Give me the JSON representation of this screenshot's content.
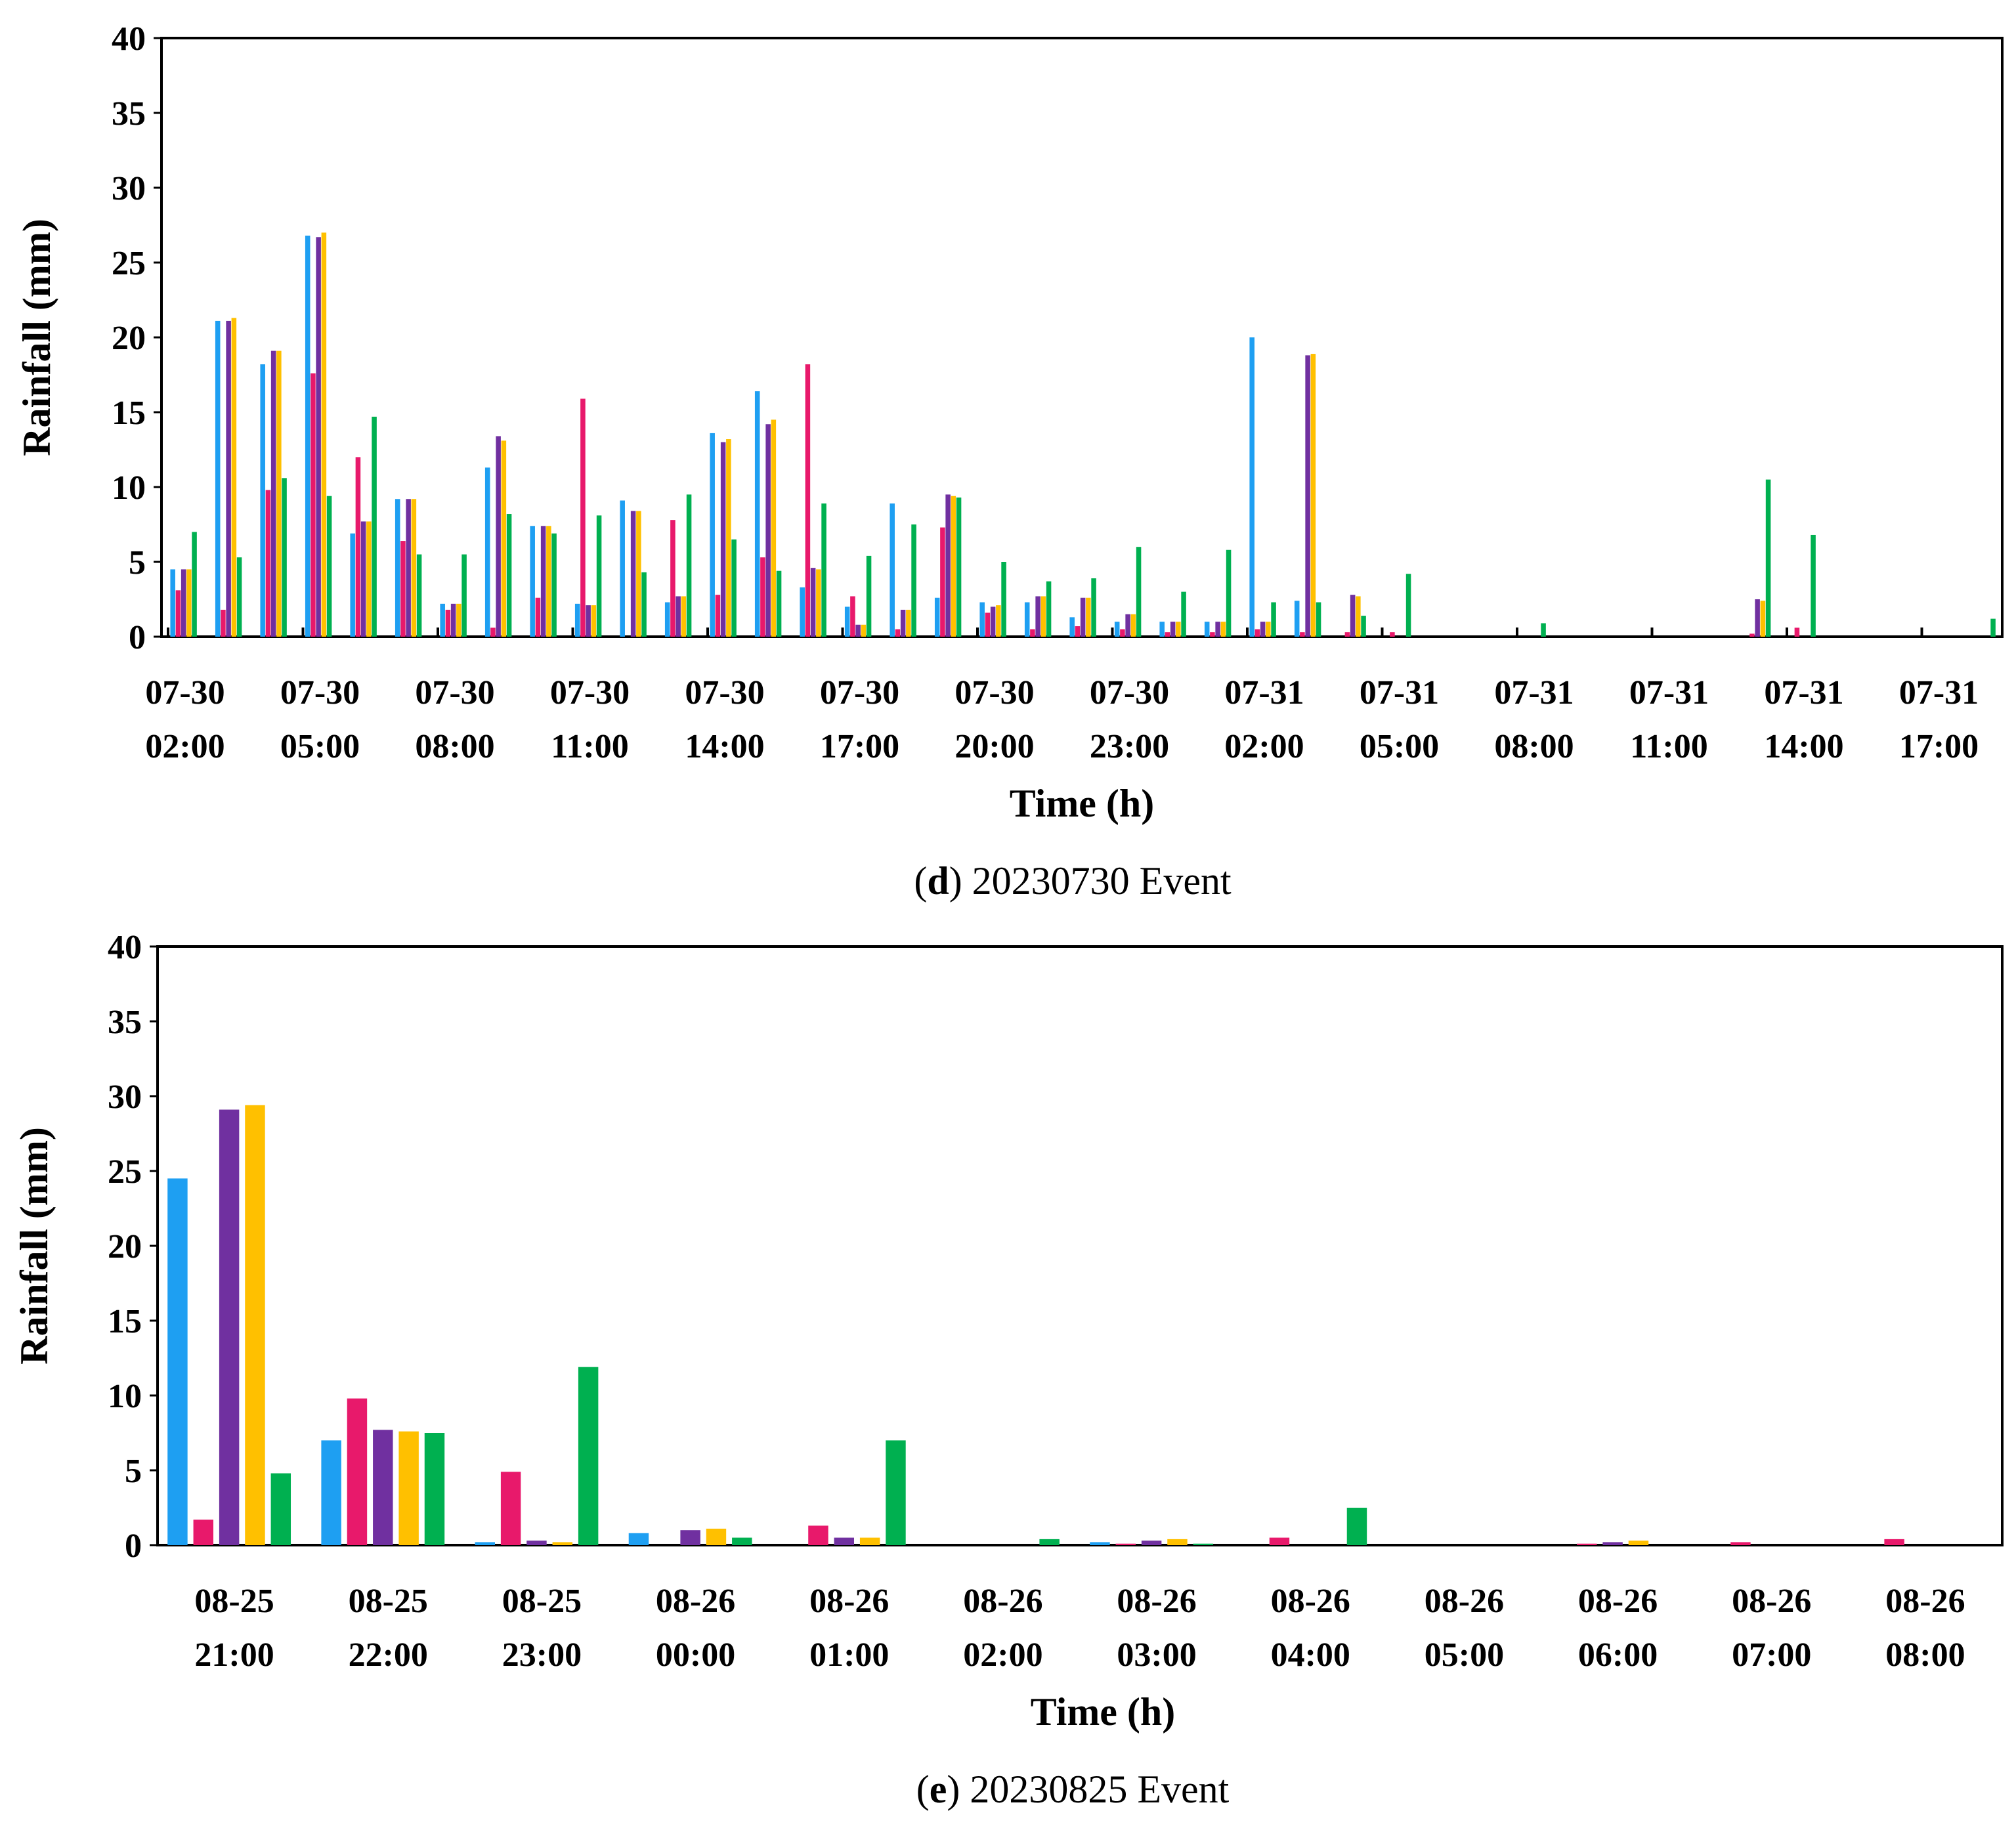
{
  "chart_data": [
    {
      "type": "bar",
      "caption_letter": "d",
      "caption_rest": ") 20230730 Event",
      "caption_open": "(",
      "xlabel": "Time (h)",
      "ylabel": "Rainfall (mm)",
      "ylim": [
        0,
        40
      ],
      "yticks": [
        0,
        5,
        10,
        15,
        20,
        25,
        30,
        35,
        40
      ],
      "xtick_labels": [
        [
          "07-30",
          "02:00"
        ],
        [
          "07-30",
          "05:00"
        ],
        [
          "07-30",
          "08:00"
        ],
        [
          "07-30",
          "11:00"
        ],
        [
          "07-30",
          "14:00"
        ],
        [
          "07-30",
          "17:00"
        ],
        [
          "07-30",
          "20:00"
        ],
        [
          "07-30",
          "23:00"
        ],
        [
          "07-31",
          "02:00"
        ],
        [
          "07-31",
          "05:00"
        ],
        [
          "07-31",
          "08:00"
        ],
        [
          "07-31",
          "11:00"
        ],
        [
          "07-31",
          "14:00"
        ],
        [
          "07-31",
          "17:00"
        ]
      ],
      "hours_per_tick": 3,
      "series_colors": [
        "#1e9ff2",
        "#e8196b",
        "#7030a0",
        "#ffc000",
        "#00b050"
      ],
      "series": [
        {
          "values": [
            4.5,
            21.1,
            18.2,
            26.8,
            6.9,
            9.2,
            2.2,
            11.3,
            7.4,
            2.2,
            9.1,
            2.3,
            13.6,
            16.4,
            3.3,
            2.0,
            8.9,
            2.6,
            2.3,
            2.3,
            1.3,
            1.0,
            1.0,
            1.0,
            20.0,
            2.4,
            0,
            0,
            0,
            0,
            0,
            0,
            0,
            0,
            0,
            0,
            0,
            0,
            0,
            0,
            0,
            0
          ]
        },
        {
          "values": [
            3.1,
            1.8,
            9.8,
            17.6,
            12.0,
            6.4,
            1.8,
            0.6,
            2.6,
            15.9,
            0,
            7.8,
            2.8,
            5.3,
            18.2,
            2.7,
            0.5,
            7.3,
            1.6,
            0.5,
            0.7,
            0.5,
            0.3,
            0.3,
            0.5,
            0.3,
            0.3,
            0.3,
            0,
            0,
            0,
            0,
            0,
            0,
            0,
            0.2,
            0.6,
            0,
            0,
            0,
            0,
            0
          ]
        },
        {
          "values": [
            4.5,
            21.1,
            19.1,
            26.7,
            7.7,
            9.2,
            2.2,
            13.4,
            7.4,
            2.1,
            8.4,
            2.7,
            13.0,
            14.2,
            4.6,
            0.8,
            1.8,
            9.5,
            2.0,
            2.7,
            2.6,
            1.5,
            1.0,
            1.0,
            1.0,
            18.8,
            2.8,
            0,
            0,
            0,
            0,
            0,
            0,
            0,
            0,
            2.5,
            0,
            0,
            0,
            0,
            0,
            0
          ]
        },
        {
          "values": [
            4.5,
            21.3,
            19.1,
            27.0,
            7.7,
            9.2,
            2.2,
            13.1,
            7.4,
            2.1,
            8.4,
            2.7,
            13.2,
            14.5,
            4.5,
            0.8,
            1.8,
            9.4,
            2.1,
            2.7,
            2.6,
            1.5,
            1.0,
            1.0,
            1.0,
            18.9,
            2.7,
            0,
            0,
            0,
            0,
            0,
            0,
            0,
            0,
            2.4,
            0,
            0,
            0,
            0,
            0,
            0
          ]
        },
        {
          "values": [
            7.0,
            5.3,
            10.6,
            9.4,
            14.7,
            5.5,
            5.5,
            8.2,
            6.9,
            8.1,
            4.3,
            9.5,
            6.5,
            4.4,
            8.9,
            5.4,
            7.5,
            9.3,
            5.0,
            3.7,
            3.9,
            6.0,
            3.0,
            5.8,
            2.3,
            2.3,
            1.4,
            4.2,
            0,
            0,
            0.9,
            0,
            0,
            0,
            0,
            10.5,
            6.8,
            0,
            0,
            0,
            1.2,
            1.2
          ]
        }
      ]
    },
    {
      "type": "bar",
      "caption_letter": "e",
      "caption_rest": ") 20230825 Event",
      "caption_open": "(",
      "xlabel": "Time (h)",
      "ylabel": "Rainfall (mm)",
      "ylim": [
        0,
        40
      ],
      "yticks": [
        0,
        5,
        10,
        15,
        20,
        25,
        30,
        35,
        40
      ],
      "categories": [
        [
          "08-25",
          "21:00"
        ],
        [
          "08-25",
          "22:00"
        ],
        [
          "08-25",
          "23:00"
        ],
        [
          "08-26",
          "00:00"
        ],
        [
          "08-26",
          "01:00"
        ],
        [
          "08-26",
          "02:00"
        ],
        [
          "08-26",
          "03:00"
        ],
        [
          "08-26",
          "04:00"
        ],
        [
          "08-26",
          "05:00"
        ],
        [
          "08-26",
          "06:00"
        ],
        [
          "08-26",
          "07:00"
        ],
        [
          "08-26",
          "08:00"
        ]
      ],
      "series_colors": [
        "#1e9ff2",
        "#e8196b",
        "#7030a0",
        "#ffc000",
        "#00b050"
      ],
      "series": [
        {
          "values": [
            24.5,
            7.0,
            0.2,
            0.8,
            0,
            0,
            0.2,
            0,
            0,
            0,
            0,
            0
          ]
        },
        {
          "values": [
            1.7,
            9.8,
            4.9,
            0,
            1.3,
            0,
            0.1,
            0.5,
            0,
            0.1,
            0.2,
            0.4
          ]
        },
        {
          "values": [
            29.1,
            7.7,
            0.3,
            1.0,
            0.5,
            0,
            0.3,
            0,
            0,
            0.2,
            0,
            0
          ]
        },
        {
          "values": [
            29.4,
            7.6,
            0.2,
            1.1,
            0.5,
            0,
            0.4,
            0,
            0,
            0.3,
            0,
            0
          ]
        },
        {
          "values": [
            4.8,
            7.5,
            11.9,
            0.5,
            7.0,
            0.4,
            0.1,
            2.5,
            0,
            0,
            0,
            0
          ]
        }
      ]
    }
  ]
}
